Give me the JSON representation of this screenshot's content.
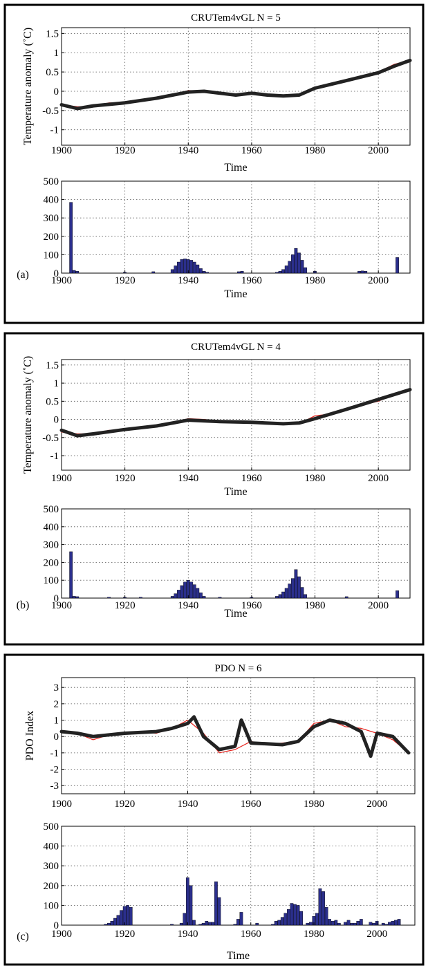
{
  "chart_data": [
    {
      "type": "line",
      "panel": "",
      "title": "CRUTem4vGL N = 5",
      "xlabel": "Time",
      "ylabel": "Temperature anomaly (˚C)",
      "xlim": [
        1900,
        2010
      ],
      "ylim": [
        -1.4,
        1.65
      ],
      "xticks": [
        1900,
        1920,
        1940,
        1960,
        1980,
        2000
      ],
      "yticks": [
        -1,
        -0.5,
        0,
        0.5,
        1,
        1.5
      ],
      "ytick_labels": [
        "-1",
        "-0.5",
        "0",
        "0.5",
        "1",
        "1.5"
      ],
      "grid": true,
      "series": [
        {
          "role": "observed",
          "color": "#e8231c",
          "x": [
            1900,
            1905,
            1910,
            1915,
            1920,
            1925,
            1930,
            1935,
            1940,
            1945,
            1950,
            1955,
            1960,
            1965,
            1970,
            1975,
            1980,
            1985,
            1990,
            1995,
            2000,
            2005,
            2010
          ],
          "y": [
            -0.35,
            -0.4,
            -0.4,
            -0.3,
            -0.3,
            -0.25,
            -0.2,
            -0.1,
            0.02,
            0.0,
            -0.05,
            -0.1,
            -0.05,
            -0.08,
            -0.1,
            -0.12,
            0.1,
            0.15,
            0.3,
            0.4,
            0.5,
            0.7,
            0.8
          ]
        },
        {
          "role": "fit",
          "color": "#222222",
          "x": [
            1900,
            1905,
            1910,
            1920,
            1930,
            1940,
            1945,
            1950,
            1955,
            1960,
            1965,
            1970,
            1975,
            1980,
            1990,
            2000,
            2005,
            2010
          ],
          "y": [
            -0.35,
            -0.45,
            -0.38,
            -0.3,
            -0.18,
            -0.02,
            0.0,
            -0.05,
            -0.1,
            -0.05,
            -0.1,
            -0.12,
            -0.1,
            0.08,
            0.28,
            0.48,
            0.65,
            0.8
          ]
        }
      ]
    },
    {
      "type": "bar",
      "panel": "(a)",
      "xlabel": "Time",
      "xlim": [
        1900,
        2010
      ],
      "ylim": [
        0,
        500
      ],
      "xticks": [
        1900,
        1920,
        1940,
        1960,
        1980,
        2000
      ],
      "yticks": [
        0,
        100,
        200,
        300,
        400,
        500
      ],
      "grid": true,
      "color": "#2b2f8c",
      "series": [
        {
          "x": [
            1903,
            1904,
            1905,
            1920,
            1929,
            1935,
            1936,
            1937,
            1938,
            1939,
            1940,
            1941,
            1942,
            1943,
            1944,
            1945,
            1946,
            1956,
            1957,
            1968,
            1969,
            1970,
            1971,
            1972,
            1973,
            1974,
            1975,
            1976,
            1977,
            1980,
            1994,
            1995,
            1996,
            2006
          ],
          "y": [
            385,
            15,
            10,
            5,
            8,
            20,
            40,
            60,
            75,
            78,
            75,
            70,
            60,
            45,
            25,
            10,
            5,
            8,
            10,
            5,
            10,
            20,
            40,
            65,
            100,
            135,
            110,
            70,
            30,
            10,
            10,
            12,
            10,
            85
          ]
        }
      ]
    },
    {
      "type": "line",
      "panel": "",
      "title": "CRUTem4vGL N = 4",
      "xlabel": "Time",
      "ylabel": "Temperature anomaly (˚C)",
      "xlim": [
        1900,
        2010
      ],
      "ylim": [
        -1.4,
        1.65
      ],
      "xticks": [
        1900,
        1920,
        1940,
        1960,
        1980,
        2000
      ],
      "yticks": [
        -1,
        -0.5,
        0,
        0.5,
        1,
        1.5
      ],
      "ytick_labels": [
        "-1",
        "-0.5",
        "0",
        "0.5",
        "1",
        "1.5"
      ],
      "grid": true,
      "series": [
        {
          "role": "observed",
          "color": "#e8231c",
          "x": [
            1900,
            1905,
            1910,
            1915,
            1920,
            1925,
            1930,
            1935,
            1940,
            1945,
            1950,
            1955,
            1960,
            1965,
            1970,
            1975,
            1980,
            1985,
            1990,
            1995,
            2000,
            2005,
            2010
          ],
          "y": [
            -0.35,
            -0.4,
            -0.4,
            -0.3,
            -0.3,
            -0.25,
            -0.2,
            -0.1,
            0.02,
            0.0,
            -0.05,
            -0.1,
            -0.05,
            -0.08,
            -0.1,
            -0.12,
            0.1,
            0.15,
            0.3,
            0.4,
            0.5,
            0.7,
            0.8
          ]
        },
        {
          "role": "fit",
          "color": "#222222",
          "x": [
            1900,
            1905,
            1910,
            1920,
            1930,
            1940,
            1950,
            1960,
            1970,
            1975,
            1980,
            1990,
            2000,
            2010
          ],
          "y": [
            -0.3,
            -0.45,
            -0.4,
            -0.28,
            -0.18,
            -0.02,
            -0.06,
            -0.08,
            -0.12,
            -0.1,
            0.02,
            0.28,
            0.55,
            0.82
          ]
        }
      ]
    },
    {
      "type": "bar",
      "panel": "(b)",
      "xlabel": "Time",
      "xlim": [
        1900,
        2010
      ],
      "ylim": [
        0,
        500
      ],
      "xticks": [
        1900,
        1920,
        1940,
        1960,
        1980,
        2000
      ],
      "yticks": [
        0,
        100,
        200,
        300,
        400,
        500
      ],
      "grid": true,
      "color": "#2b2f8c",
      "series": [
        {
          "x": [
            1903,
            1904,
            1905,
            1915,
            1920,
            1925,
            1935,
            1936,
            1937,
            1938,
            1939,
            1940,
            1941,
            1942,
            1943,
            1944,
            1945,
            1950,
            1960,
            1968,
            1969,
            1970,
            1971,
            1972,
            1973,
            1974,
            1975,
            1976,
            1977,
            1990,
            2006
          ],
          "y": [
            260,
            10,
            8,
            5,
            5,
            5,
            10,
            25,
            45,
            70,
            90,
            100,
            90,
            75,
            55,
            30,
            10,
            5,
            5,
            10,
            20,
            35,
            55,
            80,
            110,
            160,
            120,
            60,
            20,
            8,
            42
          ]
        }
      ]
    },
    {
      "type": "line",
      "panel": "",
      "title": "PDO N = 6",
      "xlabel": "",
      "ylabel": "PDO Index",
      "xlim": [
        1900,
        2012
      ],
      "ylim": [
        -3.5,
        3.6
      ],
      "xticks": [
        1900,
        1920,
        1940,
        1960,
        1980,
        2000
      ],
      "yticks": [
        -3,
        -2,
        -1,
        0,
        1,
        2,
        3
      ],
      "ytick_labels": [
        "-3",
        "-2",
        "-1",
        "0",
        "1",
        "2",
        "3"
      ],
      "grid": true,
      "series": [
        {
          "role": "observed",
          "color": "#e8231c",
          "x": [
            1900,
            1905,
            1910,
            1915,
            1920,
            1925,
            1930,
            1935,
            1940,
            1945,
            1950,
            1955,
            1960,
            1965,
            1970,
            1975,
            1980,
            1985,
            1990,
            1995,
            2000,
            2005,
            2010
          ],
          "y": [
            0.3,
            0.2,
            -0.2,
            0.1,
            0.2,
            0.3,
            0.2,
            0.5,
            1.0,
            0.2,
            -1.0,
            -0.8,
            -0.3,
            -0.5,
            -0.4,
            -0.3,
            0.8,
            1.0,
            0.6,
            0.5,
            0.2,
            -0.2,
            -1.0
          ]
        },
        {
          "role": "fit",
          "color": "#222222",
          "x": [
            1900,
            1905,
            1910,
            1920,
            1930,
            1935,
            1940,
            1942,
            1945,
            1950,
            1955,
            1957,
            1960,
            1970,
            1975,
            1980,
            1985,
            1990,
            1995,
            1998,
            2000,
            2005,
            2010
          ],
          "y": [
            0.3,
            0.2,
            0.0,
            0.2,
            0.3,
            0.5,
            0.8,
            1.2,
            0.0,
            -0.8,
            -0.6,
            1.0,
            -0.4,
            -0.5,
            -0.3,
            0.6,
            1.0,
            0.8,
            0.3,
            -1.2,
            0.2,
            0.0,
            -1.0
          ]
        }
      ]
    },
    {
      "type": "bar",
      "panel": "(c)",
      "xlabel": "Time",
      "xlim": [
        1900,
        2012
      ],
      "ylim": [
        0,
        500
      ],
      "xticks": [
        1900,
        1920,
        1940,
        1960,
        1980,
        2000
      ],
      "yticks": [
        0,
        100,
        200,
        300,
        400,
        500
      ],
      "grid": true,
      "color": "#2b2f8c",
      "series": [
        {
          "x": [
            1914,
            1915,
            1916,
            1917,
            1918,
            1919,
            1920,
            1921,
            1922,
            1935,
            1938,
            1939,
            1940,
            1941,
            1942,
            1944,
            1945,
            1946,
            1947,
            1948,
            1949,
            1950,
            1955,
            1956,
            1957,
            1962,
            1967,
            1968,
            1969,
            1970,
            1971,
            1972,
            1973,
            1974,
            1975,
            1976,
            1978,
            1979,
            1980,
            1981,
            1982,
            1983,
            1984,
            1985,
            1986,
            1987,
            1988,
            1990,
            1991,
            1992,
            1993,
            1994,
            1995,
            1998,
            1999,
            2000,
            2002,
            2003,
            2004,
            2005,
            2006,
            2007
          ],
          "y": [
            5,
            10,
            20,
            35,
            50,
            75,
            95,
            100,
            90,
            5,
            10,
            60,
            240,
            200,
            25,
            5,
            10,
            20,
            15,
            15,
            220,
            140,
            5,
            30,
            65,
            10,
            5,
            20,
            25,
            40,
            60,
            80,
            110,
            105,
            100,
            70,
            10,
            15,
            45,
            60,
            185,
            170,
            90,
            30,
            20,
            25,
            10,
            15,
            25,
            10,
            10,
            20,
            30,
            15,
            10,
            20,
            10,
            5,
            15,
            20,
            25,
            30
          ]
        }
      ]
    }
  ]
}
